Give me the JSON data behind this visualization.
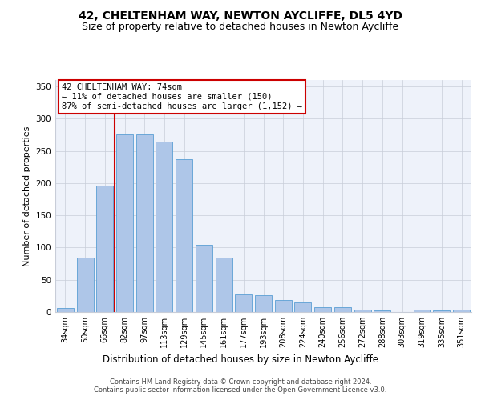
{
  "title": "42, CHELTENHAM WAY, NEWTON AYCLIFFE, DL5 4YD",
  "subtitle": "Size of property relative to detached houses in Newton Aycliffe",
  "xlabel": "Distribution of detached houses by size in Newton Aycliffe",
  "ylabel": "Number of detached properties",
  "categories": [
    "34sqm",
    "50sqm",
    "66sqm",
    "82sqm",
    "97sqm",
    "113sqm",
    "129sqm",
    "145sqm",
    "161sqm",
    "177sqm",
    "193sqm",
    "208sqm",
    "224sqm",
    "240sqm",
    "256sqm",
    "272sqm",
    "288sqm",
    "303sqm",
    "319sqm",
    "335sqm",
    "351sqm"
  ],
  "values": [
    6,
    85,
    196,
    275,
    275,
    265,
    237,
    104,
    85,
    27,
    26,
    19,
    15,
    8,
    7,
    4,
    3,
    0,
    4,
    2,
    4
  ],
  "bar_color": "#aec6e8",
  "bar_edge_color": "#5a9fd4",
  "vline_x_index": 2,
  "vline_color": "#cc0000",
  "annotation_text": "42 CHELTENHAM WAY: 74sqm\n← 11% of detached houses are smaller (150)\n87% of semi-detached houses are larger (1,152) →",
  "annotation_box_color": "#ffffff",
  "annotation_box_edge_color": "#cc0000",
  "ylim": [
    0,
    360
  ],
  "yticks": [
    0,
    50,
    100,
    150,
    200,
    250,
    300,
    350
  ],
  "footer_line1": "Contains HM Land Registry data © Crown copyright and database right 2024.",
  "footer_line2": "Contains public sector information licensed under the Open Government Licence v3.0.",
  "bg_color": "#eef2fa",
  "title_fontsize": 10,
  "subtitle_fontsize": 9,
  "tick_fontsize": 7,
  "ylabel_fontsize": 8,
  "xlabel_fontsize": 8.5,
  "footer_fontsize": 6,
  "annotation_fontsize": 7.5
}
